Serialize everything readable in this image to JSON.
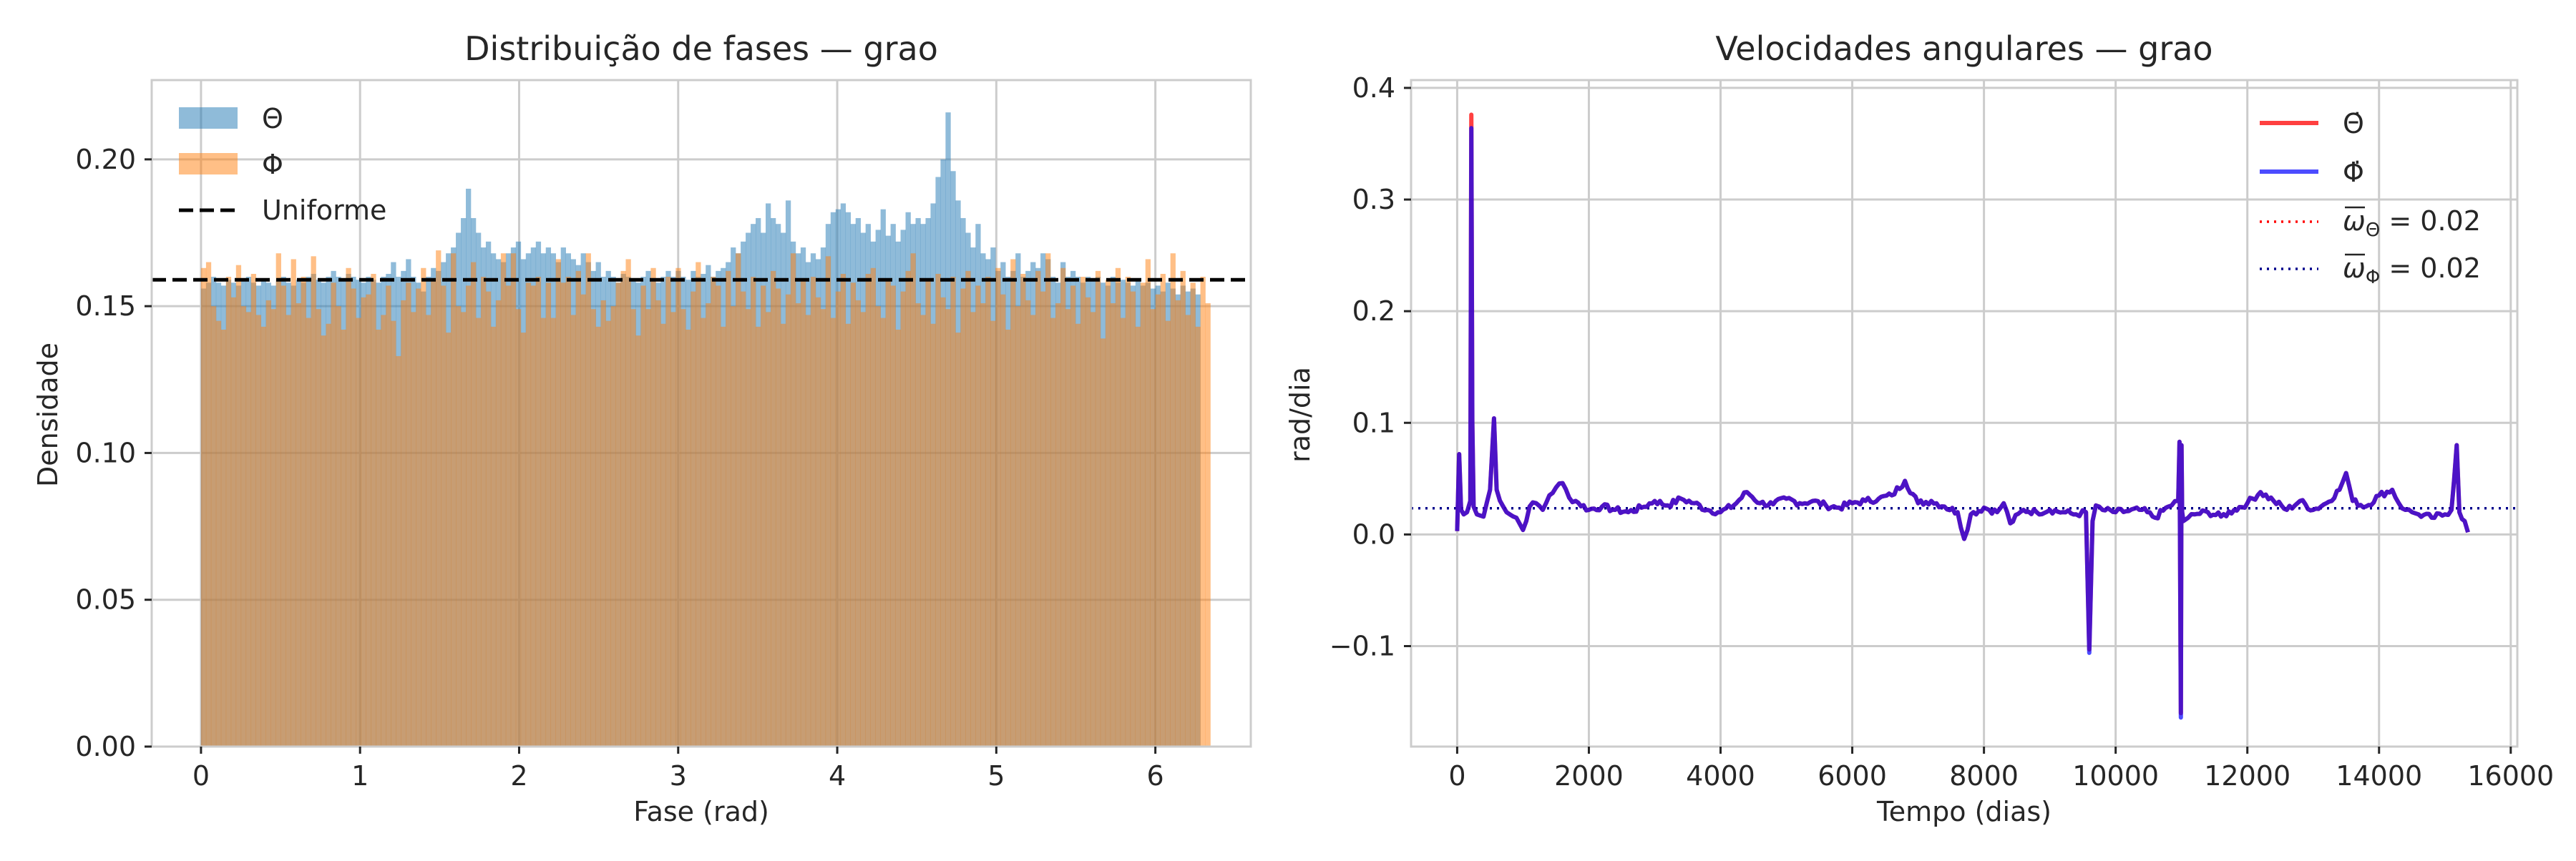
{
  "chart_data": [
    {
      "type": "bar",
      "title": "Distribuição de fases — grao",
      "xlabel": "Fase (rad)",
      "ylabel": "Densidade",
      "xlim": [
        -0.31,
        6.6
      ],
      "ylim": [
        0,
        0.227
      ],
      "xticks": [
        0,
        1,
        2,
        3,
        4,
        5,
        6
      ],
      "yticks": [
        0.0,
        0.05,
        0.1,
        0.15,
        0.2
      ],
      "ytick_labels": [
        "0.00",
        "0.05",
        "0.10",
        "0.15",
        "0.20"
      ],
      "grid": true,
      "legend_placement": "top-left",
      "bins": 200,
      "bin_range": [
        0,
        6.283
      ],
      "reference_line": {
        "label": "Uniforme",
        "y": 0.159,
        "style": "dashed",
        "color": "#000000"
      },
      "series": [
        {
          "name": "Θ",
          "color": "#1f77b4",
          "opacity": 0.5,
          "values": [
            0.156,
            0.158,
            0.16,
            0.158,
            0.157,
            0.159,
            0.158,
            0.157,
            0.159,
            0.16,
            0.158,
            0.157,
            0.159,
            0.158,
            0.157,
            0.159,
            0.16,
            0.158,
            0.157,
            0.159,
            0.158,
            0.16,
            0.161,
            0.159,
            0.158,
            0.16,
            0.162,
            0.16,
            0.159,
            0.161,
            0.16,
            0.159,
            0.158,
            0.16,
            0.159,
            0.158,
            0.16,
            0.161,
            0.165,
            0.16,
            0.162,
            0.166,
            0.16,
            0.158,
            0.155,
            0.16,
            0.163,
            0.162,
            0.165,
            0.168,
            0.17,
            0.175,
            0.18,
            0.19,
            0.18,
            0.175,
            0.17,
            0.172,
            0.168,
            0.166,
            0.165,
            0.168,
            0.17,
            0.172,
            0.166,
            0.168,
            0.17,
            0.172,
            0.168,
            0.17,
            0.168,
            0.165,
            0.17,
            0.168,
            0.166,
            0.164,
            0.168,
            0.165,
            0.162,
            0.165,
            0.16,
            0.162,
            0.16,
            0.158,
            0.161,
            0.16,
            0.159,
            0.158,
            0.16,
            0.162,
            0.159,
            0.158,
            0.16,
            0.162,
            0.16,
            0.162,
            0.16,
            0.159,
            0.162,
            0.16,
            0.161,
            0.164,
            0.16,
            0.162,
            0.163,
            0.165,
            0.17,
            0.168,
            0.172,
            0.175,
            0.178,
            0.18,
            0.175,
            0.185,
            0.18,
            0.178,
            0.175,
            0.186,
            0.172,
            0.168,
            0.17,
            0.165,
            0.168,
            0.166,
            0.17,
            0.178,
            0.182,
            0.183,
            0.185,
            0.182,
            0.178,
            0.18,
            0.175,
            0.178,
            0.172,
            0.176,
            0.183,
            0.174,
            0.178,
            0.172,
            0.176,
            0.182,
            0.178,
            0.18,
            0.178,
            0.18,
            0.185,
            0.194,
            0.2,
            0.216,
            0.196,
            0.186,
            0.18,
            0.175,
            0.17,
            0.178,
            0.168,
            0.166,
            0.17,
            0.162,
            0.165,
            0.16,
            0.162,
            0.168,
            0.16,
            0.162,
            0.165,
            0.163,
            0.168,
            0.166,
            0.16,
            0.158,
            0.165,
            0.16,
            0.162,
            0.16,
            0.158,
            0.16,
            0.159,
            0.16,
            0.158,
            0.157,
            0.16,
            0.158,
            0.159,
            0.158,
            0.157,
            0.159,
            0.157,
            0.158,
            0.156,
            0.157,
            0.155,
            0.158,
            0.156,
            0.154,
            0.157,
            0.155,
            0.156,
            0.154
          ]
        },
        {
          "name": "Φ",
          "color": "#ff7f0e",
          "opacity": 0.5,
          "values": [
            0.163,
            0.165,
            0.15,
            0.145,
            0.142,
            0.16,
            0.153,
            0.164,
            0.15,
            0.148,
            0.161,
            0.147,
            0.143,
            0.152,
            0.149,
            0.168,
            0.157,
            0.147,
            0.166,
            0.151,
            0.16,
            0.146,
            0.167,
            0.149,
            0.14,
            0.144,
            0.158,
            0.15,
            0.142,
            0.163,
            0.156,
            0.146,
            0.153,
            0.154,
            0.161,
            0.142,
            0.147,
            0.157,
            0.145,
            0.133,
            0.152,
            0.158,
            0.148,
            0.156,
            0.163,
            0.147,
            0.159,
            0.169,
            0.157,
            0.141,
            0.168,
            0.15,
            0.148,
            0.157,
            0.165,
            0.146,
            0.16,
            0.155,
            0.143,
            0.152,
            0.168,
            0.157,
            0.168,
            0.149,
            0.141,
            0.158,
            0.157,
            0.16,
            0.146,
            0.158,
            0.146,
            0.166,
            0.158,
            0.16,
            0.147,
            0.162,
            0.154,
            0.168,
            0.149,
            0.143,
            0.152,
            0.145,
            0.15,
            0.158,
            0.162,
            0.166,
            0.149,
            0.14,
            0.157,
            0.149,
            0.163,
            0.152,
            0.144,
            0.16,
            0.148,
            0.163,
            0.149,
            0.142,
            0.155,
            0.165,
            0.146,
            0.151,
            0.16,
            0.157,
            0.143,
            0.162,
            0.15,
            0.168,
            0.155,
            0.149,
            0.16,
            0.143,
            0.157,
            0.148,
            0.162,
            0.156,
            0.144,
            0.154,
            0.168,
            0.151,
            0.159,
            0.147,
            0.16,
            0.153,
            0.149,
            0.167,
            0.146,
            0.155,
            0.161,
            0.144,
            0.158,
            0.152,
            0.148,
            0.161,
            0.163,
            0.15,
            0.146,
            0.159,
            0.157,
            0.142,
            0.155,
            0.162,
            0.168,
            0.151,
            0.147,
            0.159,
            0.144,
            0.161,
            0.153,
            0.149,
            0.16,
            0.141,
            0.156,
            0.162,
            0.148,
            0.157,
            0.151,
            0.16,
            0.145,
            0.163,
            0.154,
            0.142,
            0.166,
            0.15,
            0.161,
            0.152,
            0.147,
            0.162,
            0.155,
            0.168,
            0.146,
            0.151,
            0.163,
            0.149,
            0.157,
            0.144,
            0.16,
            0.153,
            0.148,
            0.162,
            0.139,
            0.159,
            0.151,
            0.163,
            0.146,
            0.16,
            0.155,
            0.143,
            0.158,
            0.166,
            0.149,
            0.154,
            0.161,
            0.145,
            0.168,
            0.152,
            0.162,
            0.147,
            0.158,
            0.143,
            0.16,
            0.151
          ]
        }
      ]
    },
    {
      "type": "line",
      "title": "Velocidades angulares — grao",
      "xlabel": "Tempo (dias)",
      "ylabel": "rad/dia",
      "xlim": [
        -700,
        16100
      ],
      "ylim": [
        -0.19,
        0.407
      ],
      "xticks": [
        0,
        2000,
        4000,
        6000,
        8000,
        10000,
        12000,
        14000,
        16000
      ],
      "yticks": [
        -0.1,
        0.0,
        0.1,
        0.2,
        0.3,
        0.4
      ],
      "ytick_labels": [
        "−0.1",
        "0.0",
        "0.1",
        "0.2",
        "0.3",
        "0.4"
      ],
      "grid": true,
      "legend_placement": "top-right",
      "series": [
        {
          "name": "Θ̇",
          "color": "#ff0000",
          "x": [
            0,
            30,
            60,
            100,
            150,
            200,
            215,
            230,
            250,
            300,
            400,
            500,
            560,
            600,
            700,
            800,
            900,
            1000,
            1100,
            1200,
            1300,
            1400,
            1500,
            1600,
            1700,
            1800,
            2000,
            2200,
            2400,
            2600,
            2800,
            3000,
            3200,
            3400,
            3600,
            3800,
            4000,
            4200,
            4400,
            4600,
            4800,
            5000,
            5200,
            5400,
            5600,
            5800,
            6000,
            6200,
            6400,
            6600,
            6800,
            7000,
            7200,
            7400,
            7600,
            7700,
            7800,
            8000,
            8200,
            8300,
            8400,
            8600,
            8800,
            9000,
            9200,
            9400,
            9550,
            9600,
            9650,
            9700,
            9800,
            10000,
            10200,
            10400,
            10600,
            10800,
            10950,
            10970,
            10990,
            11000,
            11010,
            11030,
            11100,
            11200,
            11400,
            11600,
            11800,
            12000,
            12200,
            12400,
            12600,
            12800,
            13000,
            13200,
            13400,
            13500,
            13600,
            13800,
            14000,
            14200,
            14300,
            14400,
            14500,
            14600,
            14800,
            15000,
            15100,
            15180,
            15220,
            15300,
            15350
          ],
          "values": [
            0.003,
            0.072,
            0.022,
            0.018,
            0.02,
            0.03,
            0.376,
            0.1,
            0.025,
            0.018,
            0.016,
            0.04,
            0.104,
            0.04,
            0.025,
            0.018,
            0.015,
            0.004,
            0.025,
            0.028,
            0.022,
            0.035,
            0.042,
            0.046,
            0.033,
            0.03,
            0.022,
            0.025,
            0.022,
            0.02,
            0.024,
            0.03,
            0.026,
            0.032,
            0.028,
            0.022,
            0.02,
            0.026,
            0.038,
            0.028,
            0.027,
            0.032,
            0.028,
            0.03,
            0.026,
            0.024,
            0.028,
            0.03,
            0.032,
            0.035,
            0.048,
            0.028,
            0.03,
            0.025,
            0.02,
            -0.004,
            0.018,
            0.024,
            0.02,
            0.028,
            0.01,
            0.022,
            0.02,
            0.022,
            0.02,
            0.018,
            0.02,
            -0.103,
            0.012,
            0.026,
            0.022,
            0.02,
            0.021,
            0.022,
            0.015,
            0.025,
            0.03,
            0.083,
            -0.16,
            0.08,
            0.02,
            0.012,
            0.015,
            0.018,
            0.02,
            0.016,
            0.022,
            0.028,
            0.038,
            0.03,
            0.022,
            0.03,
            0.022,
            0.028,
            0.04,
            0.055,
            0.03,
            0.025,
            0.035,
            0.04,
            0.028,
            0.022,
            0.02,
            0.018,
            0.015,
            0.018,
            0.022,
            0.08,
            0.02,
            0.012,
            0.002
          ]
        },
        {
          "name": "Φ̇",
          "color": "#0000ff",
          "x": [
            0,
            30,
            60,
            100,
            150,
            200,
            215,
            230,
            250,
            300,
            400,
            500,
            560,
            600,
            700,
            800,
            900,
            1000,
            1100,
            1200,
            1300,
            1400,
            1500,
            1600,
            1700,
            1800,
            2000,
            2200,
            2400,
            2600,
            2800,
            3000,
            3200,
            3400,
            3600,
            3800,
            4000,
            4200,
            4400,
            4600,
            4800,
            5000,
            5200,
            5400,
            5600,
            5800,
            6000,
            6200,
            6400,
            6600,
            6800,
            7000,
            7200,
            7400,
            7600,
            7700,
            7800,
            8000,
            8200,
            8300,
            8400,
            8600,
            8800,
            9000,
            9200,
            9400,
            9550,
            9600,
            9650,
            9700,
            9800,
            10000,
            10200,
            10400,
            10600,
            10800,
            10950,
            10970,
            10990,
            11000,
            11010,
            11030,
            11100,
            11200,
            11400,
            11600,
            11800,
            12000,
            12200,
            12400,
            12600,
            12800,
            13000,
            13200,
            13400,
            13500,
            13600,
            13800,
            14000,
            14200,
            14300,
            14400,
            14500,
            14600,
            14800,
            15000,
            15100,
            15180,
            15220,
            15300,
            15350
          ],
          "values": [
            0.003,
            0.072,
            0.022,
            0.018,
            0.02,
            0.03,
            0.364,
            0.1,
            0.025,
            0.018,
            0.016,
            0.04,
            0.104,
            0.04,
            0.025,
            0.018,
            0.015,
            0.004,
            0.025,
            0.028,
            0.022,
            0.035,
            0.042,
            0.046,
            0.033,
            0.03,
            0.022,
            0.025,
            0.022,
            0.02,
            0.024,
            0.03,
            0.026,
            0.032,
            0.028,
            0.022,
            0.02,
            0.026,
            0.038,
            0.028,
            0.027,
            0.032,
            0.028,
            0.03,
            0.026,
            0.024,
            0.028,
            0.03,
            0.032,
            0.035,
            0.048,
            0.028,
            0.03,
            0.025,
            0.02,
            -0.004,
            0.018,
            0.024,
            0.02,
            0.028,
            0.01,
            0.022,
            0.02,
            0.022,
            0.02,
            0.018,
            0.02,
            -0.106,
            0.012,
            0.026,
            0.022,
            0.02,
            0.021,
            0.022,
            0.015,
            0.025,
            0.03,
            0.083,
            -0.164,
            0.08,
            0.02,
            0.012,
            0.015,
            0.018,
            0.02,
            0.016,
            0.022,
            0.028,
            0.038,
            0.03,
            0.022,
            0.03,
            0.022,
            0.028,
            0.04,
            0.055,
            0.03,
            0.025,
            0.035,
            0.04,
            0.028,
            0.022,
            0.02,
            0.018,
            0.015,
            0.018,
            0.022,
            0.08,
            0.02,
            0.012,
            0.002
          ]
        }
      ],
      "reference_lines": [
        {
          "label_prefix": "ω",
          "label_sub": "Θ",
          "label_value": " = 0.02",
          "y": 0.0235,
          "color": "#ff0000",
          "style": "dotted"
        },
        {
          "label_prefix": "ω",
          "label_sub": "Φ",
          "label_value": " = 0.02",
          "y": 0.0235,
          "color": "#00008b",
          "style": "dotted"
        }
      ]
    }
  ]
}
